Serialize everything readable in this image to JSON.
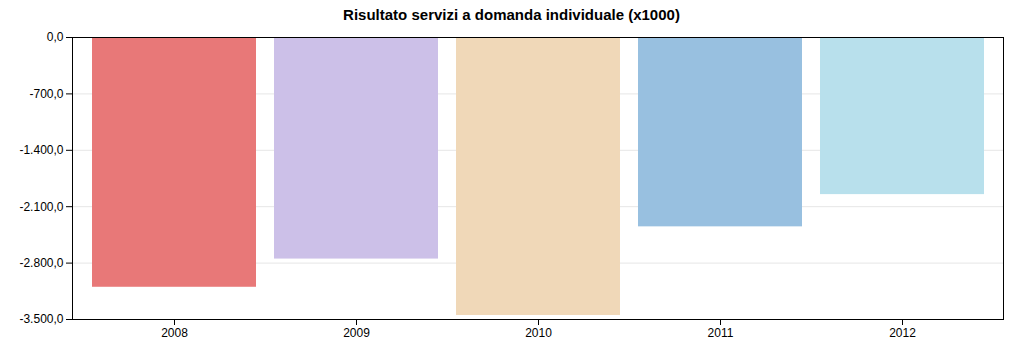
{
  "chart_data": {
    "type": "bar",
    "title": "Risultato servizi a domanda individuale (x1000)",
    "categories": [
      "2008",
      "2009",
      "2010",
      "2011",
      "2012"
    ],
    "values": [
      -3100,
      -2750,
      -3450,
      -2350,
      -1950
    ],
    "colors": [
      "#e87878",
      "#ccc0e8",
      "#f0d8b8",
      "#98c0e0",
      "#b8e0ec"
    ],
    "ylim": [
      -3500,
      0
    ],
    "yticks": [
      {
        "value": 0,
        "label": "0,0"
      },
      {
        "value": -700,
        "label": "-700,0"
      },
      {
        "value": -1400,
        "label": "-1.400,0"
      },
      {
        "value": -2100,
        "label": "-2.100,0"
      },
      {
        "value": -2800,
        "label": "-2.800,0"
      },
      {
        "value": -3500,
        "label": "-3.500,0"
      }
    ],
    "grid": true
  }
}
